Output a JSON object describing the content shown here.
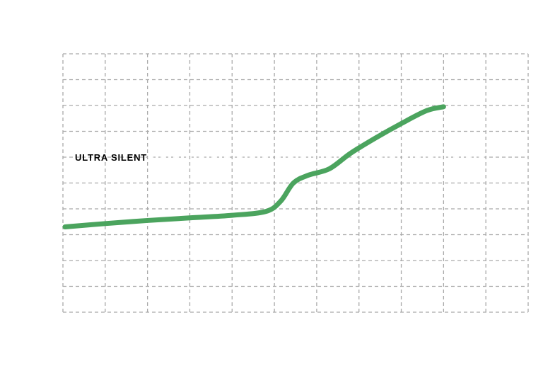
{
  "chart_data": {
    "type": "line",
    "title": "",
    "xlabel": "",
    "ylabel": "",
    "grid": true,
    "x_divisions": 11,
    "y_divisions": 10,
    "xlim": [
      0,
      11
    ],
    "ylim": [
      0,
      10
    ],
    "series": [
      {
        "color": "#4ba45e",
        "x": [
          0.05,
          1,
          2,
          3,
          4,
          4.8,
          5.15,
          5.45,
          5.8,
          6.3,
          6.8,
          7.4,
          8.0,
          8.6,
          9.0
        ],
        "y": [
          3.3,
          3.43,
          3.55,
          3.65,
          3.75,
          3.9,
          4.3,
          5.0,
          5.3,
          5.55,
          6.15,
          6.75,
          7.3,
          7.8,
          7.95
        ]
      }
    ],
    "annotations": [
      {
        "text": "ULTRA SILENT",
        "y": 6.0
      }
    ]
  }
}
